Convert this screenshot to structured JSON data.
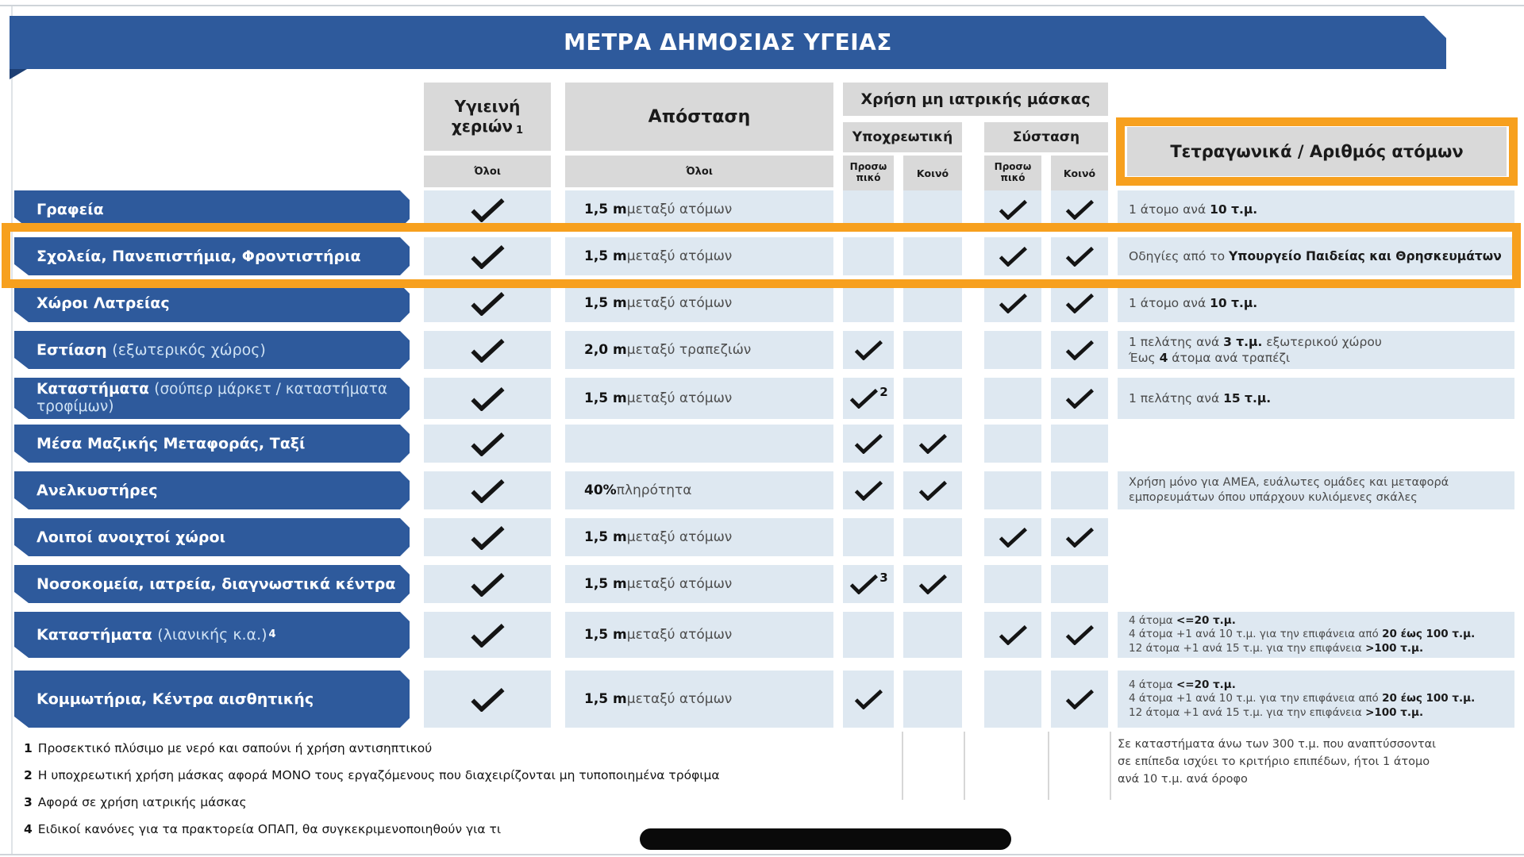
{
  "title": "ΜΕΤΡΑ ΔΗΜΟΣΙΑΣ ΥΓΕΙΑΣ",
  "colors": {
    "banner_blue": "#2E5A9C",
    "row_label_blue": "#2E5A9C",
    "header_gray": "#D9D9D9",
    "cell_light_blue": "#DEE8F1",
    "highlight_orange": "#F7A01E",
    "check_black": "#141414"
  },
  "header": {
    "hygiene": {
      "line1": "Υγιεινή",
      "line2": "χεριών",
      "footnote_ref": "1",
      "scope": "Όλοι"
    },
    "distance": {
      "label": "Απόσταση",
      "scope": "Όλοι"
    },
    "mask": {
      "label": "Χρήση μη ιατρικής μάσκας",
      "mandatory": {
        "label": "Υποχρεωτική",
        "staff": "Προσω πικό",
        "public": "Κοινό"
      },
      "recommended": {
        "label": "Σύσταση",
        "staff": "Προσω πικό",
        "public": "Κοινό"
      }
    },
    "capacity": {
      "label": "Τετραγωνικά / Αριθμός ατόμων"
    }
  },
  "rows": [
    {
      "label": [
        {
          "t": "Γραφεία",
          "b": true
        }
      ],
      "hygiene": true,
      "distance": [
        {
          "t": "1,5 m",
          "b": true
        },
        {
          "t": " μεταξύ ατόμων"
        }
      ],
      "mand_staff": false,
      "mand_staff_sup": "",
      "mand_public": false,
      "rec_staff": true,
      "rec_public": true,
      "capacity": [
        [
          {
            "t": "1 άτομο ανά "
          },
          {
            "t": "10 τ.μ.",
            "b": true
          }
        ]
      ],
      "highlight": false
    },
    {
      "label": [
        {
          "t": "Σχολεία, Πανεπιστήμια, Φροντιστήρια",
          "b": true
        }
      ],
      "hygiene": true,
      "distance": [
        {
          "t": "1,5 m",
          "b": true
        },
        {
          "t": " μεταξύ ατόμων"
        }
      ],
      "mand_staff": false,
      "mand_staff_sup": "",
      "mand_public": false,
      "rec_staff": true,
      "rec_public": true,
      "capacity": [
        [
          {
            "t": "Οδηγίες από το "
          },
          {
            "t": "Υπουργείο Παιδείας και Θρησκευμάτων",
            "b": true
          }
        ]
      ],
      "highlight": true
    },
    {
      "label": [
        {
          "t": "Χώροι Λατρείας",
          "b": true
        }
      ],
      "hygiene": true,
      "distance": [
        {
          "t": "1,5 m",
          "b": true
        },
        {
          "t": " μεταξύ ατόμων"
        }
      ],
      "mand_staff": false,
      "mand_staff_sup": "",
      "mand_public": false,
      "rec_staff": true,
      "rec_public": true,
      "capacity": [
        [
          {
            "t": "1 άτομο ανά "
          },
          {
            "t": "10 τ.μ.",
            "b": true
          }
        ]
      ],
      "highlight": false
    },
    {
      "label": [
        {
          "t": "Εστίαση ",
          "b": true
        },
        {
          "t": "(εξωτερικός χώρος)",
          "b": false
        }
      ],
      "hygiene": true,
      "distance": [
        {
          "t": "2,0 m",
          "b": true
        },
        {
          "t": " μεταξύ τραπεζιών"
        }
      ],
      "mand_staff": true,
      "mand_staff_sup": "",
      "mand_public": false,
      "rec_staff": false,
      "rec_public": true,
      "capacity": [
        [
          {
            "t": "1 πελάτης ανά "
          },
          {
            "t": "3 τ.μ.",
            "b": true
          },
          {
            "t": " εξωτερικού χώρου"
          }
        ],
        [
          {
            "t": "Έως "
          },
          {
            "t": "4",
            "b": true
          },
          {
            "t": " άτομα ανά τραπέζι"
          }
        ]
      ],
      "highlight": false
    },
    {
      "label": [
        {
          "t": "Καταστήματα ",
          "b": true
        },
        {
          "t": "(σούπερ μάρκετ / καταστήματα τροφίμων)",
          "b": false
        }
      ],
      "hygiene": true,
      "distance": [
        {
          "t": "1,5 m",
          "b": true
        },
        {
          "t": " μεταξύ ατόμων"
        }
      ],
      "mand_staff": true,
      "mand_staff_sup": "2",
      "mand_public": false,
      "rec_staff": false,
      "rec_public": true,
      "capacity": [
        [
          {
            "t": "1 πελάτης ανά "
          },
          {
            "t": "15 τ.μ.",
            "b": true
          }
        ]
      ],
      "highlight": false
    },
    {
      "label": [
        {
          "t": "Μέσα Μαζικής Μεταφοράς, Ταξί",
          "b": true
        }
      ],
      "hygiene": true,
      "distance": [],
      "mand_staff": true,
      "mand_staff_sup": "",
      "mand_public": true,
      "rec_staff": false,
      "rec_public": false,
      "capacity": [],
      "highlight": false
    },
    {
      "label": [
        {
          "t": "Ανελκυστήρες",
          "b": true
        }
      ],
      "hygiene": true,
      "distance": [
        {
          "t": "40%",
          "b": true
        },
        {
          "t": " πληρότητα"
        }
      ],
      "mand_staff": true,
      "mand_staff_sup": "",
      "mand_public": true,
      "rec_staff": false,
      "rec_public": false,
      "capacity": [
        [
          {
            "t": "Χρήση μόνο για ΑΜΕΑ, ευάλωτες ομάδες και μεταφορά"
          }
        ],
        [
          {
            "t": "εμπορευμάτων όπου υπάρχουν κυλιόμενες σκάλες"
          }
        ]
      ],
      "highlight": false
    },
    {
      "label": [
        {
          "t": "Λοιποί ανοιχτοί χώροι",
          "b": true
        }
      ],
      "hygiene": true,
      "distance": [
        {
          "t": "1,5 m",
          "b": true
        },
        {
          "t": " μεταξύ ατόμων"
        }
      ],
      "mand_staff": false,
      "mand_staff_sup": "",
      "mand_public": false,
      "rec_staff": true,
      "rec_public": true,
      "capacity": [],
      "highlight": false
    },
    {
      "label": [
        {
          "t": "Νοσοκομεία, ιατρεία, διαγνωστικά κέντρα",
          "b": true
        }
      ],
      "hygiene": true,
      "distance": [
        {
          "t": "1,5 m",
          "b": true
        },
        {
          "t": " μεταξύ ατόμων"
        }
      ],
      "mand_staff": true,
      "mand_staff_sup": "3",
      "mand_public": true,
      "rec_staff": false,
      "rec_public": false,
      "capacity": [],
      "highlight": false
    },
    {
      "label": [
        {
          "t": "Καταστήματα ",
          "b": true
        },
        {
          "t": "(λιανικής κ.α.)",
          "b": false
        }
      ],
      "label_sup": "4",
      "hygiene": true,
      "distance": [
        {
          "t": "1,5 m",
          "b": true
        },
        {
          "t": " μεταξύ ατόμων"
        }
      ],
      "mand_staff": false,
      "mand_staff_sup": "",
      "mand_public": false,
      "rec_staff": true,
      "rec_public": true,
      "capacity": [
        [
          {
            "t": "4 άτομα "
          },
          {
            "t": "<=20 τ.μ.",
            "b": true
          }
        ],
        [
          {
            "t": "4 άτομα +1 ανά 10 τ.μ. για την επιφάνεια από "
          },
          {
            "t": "20 έως 100 τ.μ.",
            "b": true
          }
        ],
        [
          {
            "t": "12 άτομα +1 ανά 15 τ.μ. για την επιφάνεια "
          },
          {
            "t": ">100 τ.μ.",
            "b": true
          }
        ]
      ],
      "highlight": false
    },
    {
      "label": [
        {
          "t": "Κομμωτήρια, Κέντρα αισθητικής",
          "b": true
        }
      ],
      "hygiene": true,
      "distance": [
        {
          "t": "1,5 m",
          "b": true
        },
        {
          "t": " μεταξύ ατόμων"
        }
      ],
      "mand_staff": true,
      "mand_staff_sup": "",
      "mand_public": false,
      "rec_staff": false,
      "rec_public": true,
      "capacity": [
        [
          {
            "t": "4 άτομα "
          },
          {
            "t": "<=20 τ.μ.",
            "b": true
          }
        ],
        [
          {
            "t": "4 άτομα +1 ανά 10 τ.μ. για την επιφάνεια από "
          },
          {
            "t": "20 έως 100 τ.μ.",
            "b": true
          }
        ],
        [
          {
            "t": "12 άτομα +1 ανά 15 τ.μ. για την επιφάνεια "
          },
          {
            "t": ">100 τ.μ.",
            "b": true
          }
        ]
      ],
      "highlight": false
    }
  ],
  "footnotes": [
    {
      "num": "1",
      "text": "Προσεκτικό πλύσιμο με νερό και σαπούνι ή χρήση αντισηπτικού"
    },
    {
      "num": "2",
      "text": "Η υποχρεωτική χρήση μάσκας αφορά ΜΟΝΟ τους εργαζόμενους που διαχειρίζονται μη τυποποιημένα τρόφιμα"
    },
    {
      "num": "3",
      "text": "Αφορά σε χρήση ιατρικής μάσκας"
    },
    {
      "num": "4",
      "text": "Ειδικοί κανόνες για τα πρακτορεία ΟΠΑΠ, θα συγκεκριμενοποιηθούν για τι"
    }
  ],
  "side_note": "Σε καταστήματα άνω των 300 τ.μ. που αναπτύσσονται\nσε επίπεδα ισχύει το κριτήριο επιπέδων, ήτοι 1 άτομο\nανά 10 τ.μ. ανά όροφο"
}
